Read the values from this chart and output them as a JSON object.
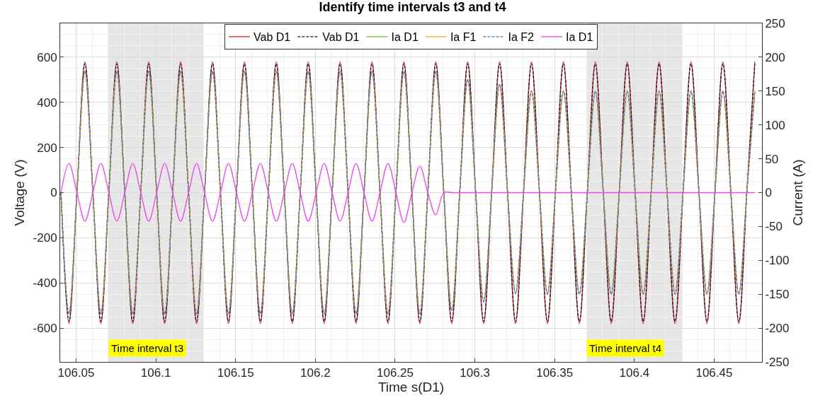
{
  "chart_data": {
    "type": "line",
    "title": "Identify time intervals t3 and t4",
    "xlabel": "Time s(D1)",
    "ylabel": "Voltage (V)",
    "y2label": "Current (A)",
    "x": [
      106.0405,
      106.0455,
      106.0505,
      106.0555,
      106.0605,
      106.0655,
      106.0705,
      106.0755,
      106.0805,
      106.0855,
      106.0905,
      106.0955,
      106.1005,
      106.1055,
      106.1105,
      106.1155,
      106.1205,
      106.1255,
      106.1305,
      106.1355,
      106.1405,
      106.1455,
      106.1505,
      106.1555,
      106.1605,
      106.1655,
      106.1705,
      106.1755,
      106.1805,
      106.1855,
      106.1905,
      106.1955,
      106.2005,
      106.2055,
      106.2105,
      106.2155,
      106.2205,
      106.2255,
      106.2305,
      106.2355,
      106.2405,
      106.2455,
      106.2505,
      106.2555,
      106.2605,
      106.2655,
      106.2705,
      106.2755,
      106.2805,
      106.2855,
      106.2905,
      106.2955,
      106.3005,
      106.3055,
      106.3105,
      106.3155,
      106.3205,
      106.3255,
      106.3305,
      106.3355,
      106.3405,
      106.3455,
      106.3505,
      106.3555,
      106.3605,
      106.3655,
      106.3705,
      106.3755,
      106.3805,
      106.3855,
      106.3905,
      106.3955,
      106.4005,
      106.4055,
      106.4105,
      106.4155,
      106.4205,
      106.4255,
      106.4305,
      106.4355,
      106.4405,
      106.4455,
      106.4505,
      106.4555,
      106.4605,
      106.4655,
      106.4705,
      106.4755
    ],
    "series": [
      {
        "name": "Vab D1",
        "color": "#e3262b",
        "line_style": "solid",
        "values": [
          0,
          -580,
          0,
          580,
          0,
          -580,
          0,
          580,
          0,
          -580,
          0,
          580,
          0,
          -580,
          0,
          580,
          0,
          -580,
          0,
          580,
          0,
          -580,
          0,
          580,
          0,
          -580,
          0,
          580,
          0,
          -580,
          0,
          580,
          0,
          -580,
          0,
          580,
          0,
          -580,
          0,
          580,
          0,
          -580,
          0,
          580,
          0,
          -580,
          0,
          580,
          0,
          -580,
          0,
          580,
          0,
          -580,
          0,
          580,
          0,
          -580,
          0,
          580,
          0,
          -580,
          0,
          580,
          0,
          -580,
          0,
          580,
          0,
          -580,
          0,
          580,
          0,
          -580,
          0,
          580,
          0,
          -580,
          0,
          580,
          0,
          -580,
          0,
          580,
          0,
          -580,
          0,
          580
        ]
      },
      {
        "name": "Vab D1",
        "color": "#1a1a2e",
        "line_style": "dashed",
        "values": [
          0,
          -571,
          0,
          571,
          0,
          -571,
          0,
          571,
          0,
          -571,
          0,
          571,
          0,
          -571,
          0,
          571,
          0,
          -571,
          0,
          571,
          0,
          -571,
          0,
          571,
          0,
          -571,
          0,
          571,
          0,
          -571,
          0,
          571,
          0,
          -571,
          0,
          571,
          0,
          -571,
          0,
          571,
          0,
          -571,
          0,
          571,
          0,
          -571,
          0,
          571,
          0,
          -571,
          0,
          571,
          0,
          -571,
          0,
          571,
          0,
          -571,
          0,
          571,
          0,
          -571,
          0,
          571,
          0,
          -571,
          0,
          571,
          0,
          -571,
          0,
          571,
          0,
          -571,
          0,
          571,
          0,
          -571,
          0,
          571,
          0,
          -571,
          0,
          571,
          0,
          -571,
          0,
          571
        ]
      },
      {
        "name": "Ia D1",
        "color": "#77bb33",
        "line_style": "solid",
        "axis": "y2",
        "values": [
          0,
          -179,
          0,
          179,
          0,
          -179,
          0,
          179,
          0,
          -179,
          0,
          179,
          0,
          -179,
          0,
          179,
          0,
          -179,
          0,
          179,
          0,
          -179,
          0,
          179,
          0,
          -179,
          0,
          179,
          0,
          -179,
          0,
          179,
          0,
          -179,
          0,
          179,
          0,
          -179,
          0,
          179,
          0,
          -179,
          0,
          179,
          0,
          -179,
          0,
          179,
          0,
          -174,
          0,
          167,
          0,
          -161,
          0,
          160,
          0,
          -149,
          0,
          150,
          0,
          -150,
          0,
          150,
          0,
          -150,
          0,
          150,
          0,
          -150,
          0,
          150,
          0,
          -150,
          0,
          150,
          0,
          -150,
          0,
          150,
          0,
          -150,
          0,
          150,
          0,
          -150,
          0,
          150
        ]
      },
      {
        "name": "Ia F1",
        "color": "#edb120",
        "line_style": "solid",
        "axis": "y2",
        "values": [
          0,
          -179,
          0,
          179,
          0,
          -179,
          0,
          179,
          0,
          -179,
          0,
          179,
          0,
          -179,
          0,
          179,
          0,
          -179,
          0,
          179,
          0,
          -179,
          0,
          179,
          0,
          -179,
          0,
          179,
          0,
          -179,
          0,
          179,
          0,
          -179,
          0,
          179,
          0,
          -179,
          0,
          179,
          0,
          -179,
          0,
          179,
          0,
          -179,
          0,
          179,
          0,
          -174,
          0,
          167,
          0,
          -161,
          0,
          160,
          0,
          -149,
          0,
          150,
          0,
          -150,
          0,
          150,
          0,
          -150,
          0,
          150,
          0,
          -150,
          0,
          150,
          0,
          -150,
          0,
          150,
          0,
          -150,
          0,
          150,
          0,
          -150,
          0,
          150,
          0,
          -150,
          0,
          150
        ]
      },
      {
        "name": "Ia F2",
        "color": "#4a6fd6",
        "line_style": "dashed",
        "axis": "y2",
        "values": [
          0,
          -179,
          0,
          179,
          0,
          -179,
          0,
          179,
          0,
          -179,
          0,
          179,
          0,
          -179,
          0,
          179,
          0,
          -179,
          0,
          179,
          0,
          -179,
          0,
          179,
          0,
          -179,
          0,
          179,
          0,
          -179,
          0,
          179,
          0,
          -179,
          0,
          179,
          0,
          -179,
          0,
          179,
          0,
          -179,
          0,
          179,
          0,
          -179,
          0,
          179,
          0,
          -174,
          0,
          167,
          0,
          -161,
          0,
          160,
          0,
          -149,
          0,
          150,
          0,
          -150,
          0,
          150,
          0,
          -150,
          0,
          150,
          0,
          -150,
          0,
          150,
          0,
          -150,
          0,
          150,
          0,
          -150,
          0,
          150,
          0,
          -150,
          0,
          150,
          0,
          -150,
          0,
          150
        ]
      },
      {
        "name": "Ia D1",
        "color": "#ee44ee",
        "line_style": "solid",
        "axis": "y2",
        "values": [
          0,
          43,
          0,
          -42,
          0,
          43,
          0,
          -42,
          0,
          43,
          0,
          -42,
          0,
          43,
          0,
          -42,
          0,
          43,
          0,
          -42,
          0,
          43,
          0,
          -42,
          0,
          43,
          0,
          -42,
          0,
          43,
          0,
          -42,
          0,
          43,
          0,
          -42,
          0,
          43,
          0,
          -42,
          0,
          43,
          0,
          -44,
          0,
          39,
          0,
          -33,
          0,
          0,
          0,
          0,
          0,
          0,
          0,
          0,
          0,
          0,
          0,
          0,
          0,
          0,
          0,
          0,
          0,
          0,
          0,
          0,
          0,
          0,
          0,
          0,
          0,
          0,
          0,
          0,
          0,
          0,
          0,
          0,
          0,
          0,
          0,
          0,
          0,
          0,
          0,
          0
        ]
      }
    ],
    "xlim": [
      106.04,
      106.48
    ],
    "xticks": [
      106.05,
      106.1,
      106.15,
      106.2,
      106.25,
      106.3,
      106.35,
      106.4,
      106.45
    ],
    "ylim": [
      -750,
      750
    ],
    "yticks": [
      -600,
      -400,
      -200,
      0,
      200,
      400,
      600
    ],
    "y2lim": [
      -250,
      250
    ],
    "y2ticks": [
      -250,
      -200,
      -150,
      -100,
      -50,
      0,
      50,
      100,
      150,
      200,
      250
    ],
    "bands": [
      {
        "axis": "x",
        "from": 106.07,
        "to": 106.13,
        "label": "Time interval t3",
        "color": "#e6e6e6"
      },
      {
        "axis": "x",
        "from": 106.37,
        "to": 106.43,
        "label": "Time interval t4",
        "color": "#e6e6e6"
      }
    ],
    "grid": true,
    "legend": "top",
    "marker": "none"
  }
}
